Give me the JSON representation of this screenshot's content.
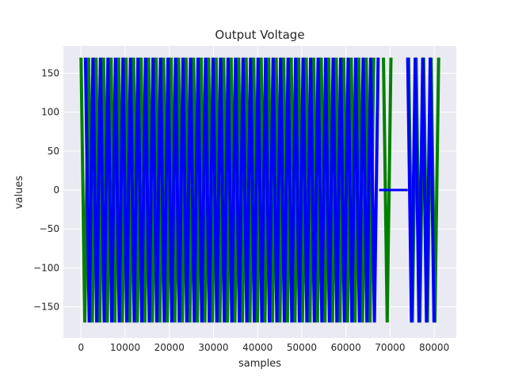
{
  "chart_data": {
    "type": "line",
    "title": "Output Voltage",
    "xlabel": "samples",
    "ylabel": "values",
    "xlim": [
      -4000,
      85000
    ],
    "ylim": [
      -190,
      185
    ],
    "x_ticks": [
      0,
      10000,
      20000,
      30000,
      40000,
      50000,
      60000,
      70000,
      80000
    ],
    "y_ticks": [
      -150,
      -100,
      -50,
      0,
      50,
      100,
      150
    ],
    "x_tick_labels": [
      "0",
      "10000",
      "20000",
      "30000",
      "40000",
      "50000",
      "60000",
      "70000",
      "80000"
    ],
    "y_tick_labels": [
      "−150",
      "−100",
      "−50",
      "0",
      "50",
      "100",
      "150"
    ],
    "grid": true,
    "series": [
      {
        "name": "green",
        "color": "#008000",
        "amplitude": 170,
        "segments": [
          [
            0,
            67000
          ],
          [
            68500,
            70800
          ],
          [
            74200,
            81000
          ]
        ],
        "period": 1700,
        "phase": 0
      },
      {
        "name": "blue",
        "color": "#0000ff",
        "amplitude": 170,
        "segments": [
          [
            1000,
            67500
          ],
          [
            67500,
            74000
          ],
          [
            74000,
            80500
          ]
        ],
        "zero_segment": [
          67500,
          74000
        ],
        "period": 1700,
        "phase": 850
      }
    ]
  },
  "colors": {
    "plot_background": "#eaeaf2",
    "grid": "#ffffff",
    "text": "#262626"
  }
}
